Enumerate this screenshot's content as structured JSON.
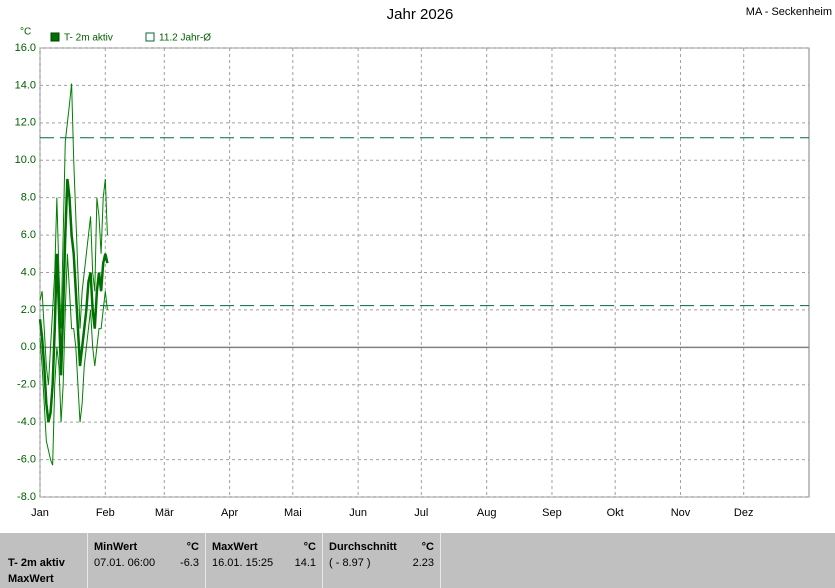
{
  "chart_data": {
    "type": "line",
    "title": "Jahr 2026",
    "station": "MA - Seckenheim",
    "y_unit": "°C",
    "xlim": [
      0,
      365
    ],
    "xticks": [
      {
        "value": 0,
        "label": "Jan"
      },
      {
        "value": 31,
        "label": "Feb"
      },
      {
        "value": 59,
        "label": "Mär"
      },
      {
        "value": 90,
        "label": "Apr"
      },
      {
        "value": 120,
        "label": "Mai"
      },
      {
        "value": 151,
        "label": "Jun"
      },
      {
        "value": 181,
        "label": "Jul"
      },
      {
        "value": 212,
        "label": "Aug"
      },
      {
        "value": 243,
        "label": "Sep"
      },
      {
        "value": 273,
        "label": "Okt"
      },
      {
        "value": 304,
        "label": "Nov"
      },
      {
        "value": 334,
        "label": "Dez"
      }
    ],
    "ylim": [
      -8,
      16
    ],
    "yticks": [
      {
        "value": -8,
        "label": "-8.0"
      },
      {
        "value": -6,
        "label": "-6.0"
      },
      {
        "value": -4,
        "label": "-4.0"
      },
      {
        "value": -2,
        "label": "-2.0"
      },
      {
        "value": 0,
        "label": "0.0"
      },
      {
        "value": 2,
        "label": "2.0"
      },
      {
        "value": 4,
        "label": "4.0"
      },
      {
        "value": 6,
        "label": "6.0"
      },
      {
        "value": 8,
        "label": "8.0"
      },
      {
        "value": 10,
        "label": "10.0"
      },
      {
        "value": 12,
        "label": "12.0"
      },
      {
        "value": 14,
        "label": "14.0"
      },
      {
        "value": 16,
        "label": "16.0"
      }
    ],
    "grid": true,
    "x": [
      0,
      1,
      2,
      3,
      4,
      5,
      6,
      7,
      8,
      9,
      10,
      11,
      12,
      13,
      14,
      15,
      16,
      17,
      18,
      19,
      20,
      21,
      22,
      23,
      24,
      25,
      26,
      27,
      28,
      29,
      30,
      31,
      32
    ],
    "series": [
      {
        "name": "T- 2m aktiv",
        "color": "#007000",
        "values": [
          1.5,
          0.5,
          -1,
          -3,
          -4,
          -3.5,
          -2,
          1,
          5,
          2,
          -1.5,
          2,
          6,
          9,
          8,
          6,
          5,
          3,
          1,
          -1,
          0,
          1,
          2,
          3.5,
          4,
          2,
          1,
          3,
          4,
          3,
          4.5,
          5,
          4.5
        ]
      }
    ],
    "envelope": {
      "color": "#008000",
      "high": [
        2.5,
        3,
        1,
        -1,
        -2,
        0,
        2,
        4,
        8,
        4,
        1,
        6,
        11,
        12,
        13,
        14.1,
        10,
        7,
        4,
        1,
        3,
        4,
        5,
        6,
        7,
        4,
        3,
        8,
        7,
        5,
        8,
        9,
        6
      ],
      "low": [
        0.5,
        -1,
        -3,
        -5,
        -5.5,
        -6,
        -6.3,
        -2,
        0,
        -1,
        -4,
        -2,
        2,
        5,
        3,
        1,
        1,
        0,
        -2,
        -4,
        -3,
        -1,
        0,
        1,
        2,
        0,
        -1,
        0,
        1,
        1,
        2,
        3,
        2
      ]
    },
    "reference_lines": [
      {
        "value": 11.2,
        "label": "11.2 Jahr-Ø",
        "color": "#006a3a"
      },
      {
        "value": 2.23,
        "color": "#006a3a"
      }
    ]
  },
  "table": {
    "row_labels": [
      "T- 2m aktiv",
      "MaxWert"
    ],
    "columns": [
      {
        "header": "MinWert",
        "unit": "°C",
        "time": "07.01.  06:00",
        "value": "-6.3"
      },
      {
        "header": "MaxWert",
        "unit": "°C",
        "time": "16.01.  15:25",
        "value": "14.1"
      },
      {
        "header": "Durchschnitt",
        "unit": "°C",
        "time": "( - 8.97 )",
        "value": "2.23"
      }
    ]
  }
}
